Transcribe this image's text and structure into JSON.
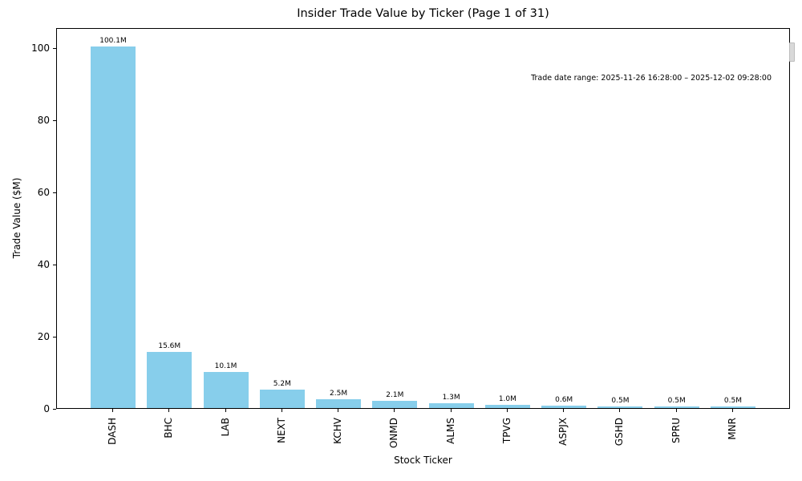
{
  "chart_data": {
    "type": "bar",
    "title": "Insider Trade Value by Ticker (Page 1 of 31)",
    "xlabel": "Stock Ticker",
    "ylabel": "Trade Value ($M)",
    "categories": [
      "DASH",
      "BHC",
      "LAB",
      "NEXT",
      "KCHV",
      "ONMD",
      "ALMS",
      "TPVG",
      "ASPJX",
      "GSHD",
      "SPRU",
      "MNR"
    ],
    "values": [
      100.1,
      15.6,
      10.1,
      5.2,
      2.5,
      2.1,
      1.3,
      1.0,
      0.6,
      0.5,
      0.5,
      0.5
    ],
    "bar_labels": [
      "100.1M",
      "15.6M",
      "10.1M",
      "5.2M",
      "2.5M",
      "2.1M",
      "1.3M",
      "1.0M",
      "0.6M",
      "0.5M",
      "0.5M",
      "0.5M"
    ],
    "annotation": "Trade date range: 2025-11-26 16:28:00 – 2025-12-02 09:28:00",
    "yticks": [
      0,
      20,
      40,
      60,
      80,
      100
    ],
    "ylim": [
      0,
      105.5
    ],
    "bar_color": "#87CEEB",
    "grid": false,
    "legend": false
  }
}
